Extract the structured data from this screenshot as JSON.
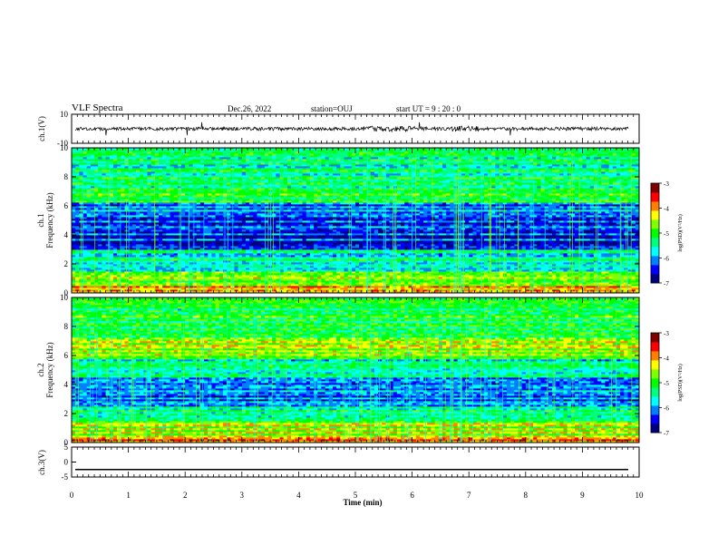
{
  "header": {
    "title": "VLF Spectra",
    "date": "Dec.26, 2022",
    "station": "station=OUJ",
    "start_ut": "start UT =  9 : 20 : 0"
  },
  "chart_data": [
    {
      "type": "line",
      "panel": "ch1-waveform",
      "ylabel": "ch.1(V)",
      "ylim": [
        -10,
        10
      ],
      "y_ticks": [
        "10",
        "-10"
      ],
      "baseline": 0,
      "noise_amplitude": 1.2,
      "line_color": "#000000"
    },
    {
      "type": "heatmap",
      "panel": "ch1-spectrogram",
      "ylabel": "ch.1\nFrequency (kHz)",
      "ylim": [
        0,
        10
      ],
      "y_ticks": [
        "0",
        "2",
        "4",
        "6",
        "8",
        "10"
      ],
      "xlim": [
        0,
        10
      ],
      "colorbar": {
        "label": "log(PSD)(V²/Hz)",
        "range": [
          -7,
          -3
        ],
        "ticks": [
          "-3",
          "-4",
          "-5",
          "-6",
          "-7"
        ]
      },
      "bands": [
        {
          "f_range": [
            7.0,
            10.0
          ],
          "level": -5.3,
          "desc": "speckled blue-cyan"
        },
        {
          "f_range": [
            6.2,
            7.0
          ],
          "level": -4.9,
          "desc": "cyan-green band"
        },
        {
          "f_range": [
            5.2,
            6.2
          ],
          "level": -6.0,
          "desc": "mostly blue"
        },
        {
          "f_range": [
            3.0,
            5.2
          ],
          "level": -6.4,
          "desc": "dark blue with black lines"
        },
        {
          "f_range": [
            1.5,
            3.0
          ],
          "level": -5.5,
          "desc": "blue-cyan"
        },
        {
          "f_range": [
            0.5,
            1.5
          ],
          "level": -4.6,
          "desc": "green-yellow"
        },
        {
          "f_range": [
            0.0,
            0.5
          ],
          "level": -3.8,
          "desc": "red-yellow"
        }
      ]
    },
    {
      "type": "heatmap",
      "panel": "ch2-spectrogram",
      "ylabel": "ch.2\nFrequency (kHz)",
      "ylim": [
        0,
        10
      ],
      "y_ticks": [
        "0",
        "2",
        "4",
        "6",
        "8",
        "10"
      ],
      "xlim": [
        0,
        10
      ],
      "colorbar": {
        "label": "log(PSD)(V²/Hz)",
        "range": [
          -7,
          -3
        ],
        "ticks": [
          "-3",
          "-4",
          "-5",
          "-6",
          "-7"
        ]
      },
      "bands": [
        {
          "f_range": [
            7.3,
            10.0
          ],
          "level": -5.1,
          "desc": "speckled cyan-green"
        },
        {
          "f_range": [
            5.8,
            7.3
          ],
          "level": -4.6,
          "desc": "bright green band"
        },
        {
          "f_range": [
            4.5,
            5.8
          ],
          "level": -5.5,
          "desc": "cyan-blue"
        },
        {
          "f_range": [
            2.5,
            4.5
          ],
          "level": -6.1,
          "desc": "blue with dark lines"
        },
        {
          "f_range": [
            1.5,
            2.5
          ],
          "level": -5.4,
          "desc": "blue-cyan"
        },
        {
          "f_range": [
            0.5,
            1.5
          ],
          "level": -4.5,
          "desc": "green-yellow"
        },
        {
          "f_range": [
            0.0,
            0.5
          ],
          "level": -4.0,
          "desc": "yellow-green"
        }
      ]
    },
    {
      "type": "line",
      "panel": "ch3-waveform",
      "ylabel": "ch.3(V)",
      "ylim": [
        -5,
        5
      ],
      "y_ticks": [
        "5",
        "0",
        "-5"
      ],
      "value": -2.5,
      "line_color": "#000000"
    }
  ],
  "x_axis": {
    "label": "Time (min)",
    "range": [
      0,
      10
    ],
    "ticks": [
      "0",
      "1",
      "2",
      "3",
      "4",
      "5",
      "6",
      "7",
      "8",
      "9",
      "10"
    ]
  },
  "colors": {
    "colormap": [
      "#00007f",
      "#0000ff",
      "#007fff",
      "#00ffff",
      "#00ff7f",
      "#00ff00",
      "#7fff00",
      "#ffff00",
      "#ff7f00",
      "#ff0000",
      "#7f0000"
    ]
  }
}
